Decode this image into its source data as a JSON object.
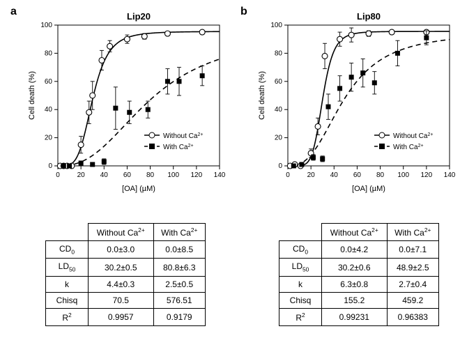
{
  "global": {
    "font_family": "Arial",
    "bg_color": "#ffffff",
    "text_color": "#000000",
    "axis_color": "#000000",
    "series_without": {
      "label": "Without Ca",
      "sup": "2+",
      "marker": "open-circle",
      "line_style": "solid",
      "color": "#000000"
    },
    "series_with": {
      "label": "With Ca",
      "sup": "2+",
      "marker": "filled-square",
      "line_style": "dashed",
      "color": "#000000"
    }
  },
  "panels": {
    "a": {
      "label": "a",
      "chart": {
        "title": "Lip20",
        "title_fontsize": 13,
        "xlabel": "[OA] (µM)",
        "ylabel": "Cell death (%)",
        "label_fontsize": 11,
        "tick_fontsize": 10,
        "xlim": [
          0,
          140
        ],
        "ylim": [
          0,
          100
        ],
        "xticks": [
          0,
          20,
          40,
          60,
          80,
          100,
          120,
          140
        ],
        "yticks": [
          0,
          20,
          40,
          60,
          80,
          100
        ],
        "legend_position": "lower-right",
        "marker_size": 5,
        "line_width": 1.6,
        "errorbar_width": 0.9,
        "without_curve": {
          "CD0": 0,
          "LD50": 30.2,
          "k": 4.4,
          "max": 95.5
        },
        "with_curve": {
          "CD0": 0,
          "LD50": 80.8,
          "k": 2.5,
          "max": 95
        },
        "without_points": [
          {
            "x": 2,
            "y": 0,
            "e": 0
          },
          {
            "x": 5,
            "y": 0,
            "e": 0
          },
          {
            "x": 8,
            "y": 0,
            "e": 0
          },
          {
            "x": 12,
            "y": 0,
            "e": 0
          },
          {
            "x": 20,
            "y": 15,
            "e": 6
          },
          {
            "x": 27,
            "y": 38,
            "e": 8
          },
          {
            "x": 30,
            "y": 50,
            "e": 10
          },
          {
            "x": 38,
            "y": 75,
            "e": 7
          },
          {
            "x": 45,
            "y": 85,
            "e": 4
          },
          {
            "x": 60,
            "y": 90,
            "e": 3
          },
          {
            "x": 75,
            "y": 92,
            "e": 2
          },
          {
            "x": 95,
            "y": 94,
            "e": 1
          },
          {
            "x": 125,
            "y": 95,
            "e": 1
          }
        ],
        "with_points": [
          {
            "x": 5,
            "y": 0,
            "e": 0
          },
          {
            "x": 10,
            "y": 0,
            "e": 0
          },
          {
            "x": 20,
            "y": 2,
            "e": 1
          },
          {
            "x": 30,
            "y": 1,
            "e": 1
          },
          {
            "x": 40,
            "y": 3,
            "e": 2
          },
          {
            "x": 50,
            "y": 41,
            "e": 15
          },
          {
            "x": 62,
            "y": 38,
            "e": 8
          },
          {
            "x": 78,
            "y": 40,
            "e": 6
          },
          {
            "x": 95,
            "y": 60,
            "e": 9
          },
          {
            "x": 105,
            "y": 60,
            "e": 10
          },
          {
            "x": 125,
            "y": 64,
            "e": 7
          }
        ]
      },
      "table": {
        "col1": "Without Ca",
        "col1_sup": "2+",
        "col2": "With Ca",
        "col2_sup": "2+",
        "rows": [
          {
            "h": "CD",
            "sub": "0",
            "v1": "0.0±3.0",
            "v2": "0.0±8.5"
          },
          {
            "h": "LD",
            "sub": "50",
            "v1": "30.2±0.5",
            "v2": "80.8±6.3"
          },
          {
            "h": "k",
            "sub": "",
            "v1": "4.4±0.3",
            "v2": "2.5±0.5"
          },
          {
            "h": "Chisq",
            "sub": "",
            "v1": "70.5",
            "v2": "576.51"
          },
          {
            "h": "R",
            "sup": "2",
            "v1": "0.9957",
            "v2": "0.9179"
          }
        ]
      }
    },
    "b": {
      "label": "b",
      "chart": {
        "title": "Lip80",
        "title_fontsize": 13,
        "xlabel": "[OA] (µM)",
        "ylabel": "Cell death (%)",
        "label_fontsize": 11,
        "tick_fontsize": 10,
        "xlim": [
          0,
          140
        ],
        "ylim": [
          0,
          100
        ],
        "xticks": [
          0,
          20,
          40,
          60,
          80,
          100,
          120,
          140
        ],
        "yticks": [
          0,
          20,
          40,
          60,
          80,
          100
        ],
        "legend_position": "lower-right",
        "marker_size": 5,
        "line_width": 1.6,
        "errorbar_width": 0.9,
        "without_curve": {
          "CD0": 0,
          "LD50": 30.2,
          "k": 6.3,
          "max": 95.5
        },
        "with_curve": {
          "CD0": 0,
          "LD50": 48.9,
          "k": 2.7,
          "max": 95
        },
        "without_points": [
          {
            "x": 2,
            "y": 0,
            "e": 0
          },
          {
            "x": 6,
            "y": 1,
            "e": 0
          },
          {
            "x": 11,
            "y": 0,
            "e": 0
          },
          {
            "x": 20,
            "y": 9,
            "e": 3
          },
          {
            "x": 26,
            "y": 28,
            "e": 6
          },
          {
            "x": 32,
            "y": 78,
            "e": 9
          },
          {
            "x": 45,
            "y": 90,
            "e": 5
          },
          {
            "x": 55,
            "y": 93,
            "e": 5
          },
          {
            "x": 70,
            "y": 94,
            "e": 2
          },
          {
            "x": 90,
            "y": 95,
            "e": 1
          },
          {
            "x": 120,
            "y": 95,
            "e": 1
          }
        ],
        "with_points": [
          {
            "x": 5,
            "y": 0,
            "e": 0
          },
          {
            "x": 12,
            "y": 1,
            "e": 0
          },
          {
            "x": 22,
            "y": 6,
            "e": 2
          },
          {
            "x": 30,
            "y": 5,
            "e": 2
          },
          {
            "x": 35,
            "y": 42,
            "e": 9
          },
          {
            "x": 45,
            "y": 55,
            "e": 9
          },
          {
            "x": 55,
            "y": 63,
            "e": 10
          },
          {
            "x": 65,
            "y": 66,
            "e": 10
          },
          {
            "x": 75,
            "y": 59,
            "e": 8
          },
          {
            "x": 95,
            "y": 80,
            "e": 9
          },
          {
            "x": 120,
            "y": 91,
            "e": 5
          }
        ]
      },
      "table": {
        "col1": "Without Ca",
        "col1_sup": "2+",
        "col2": "With Ca",
        "col2_sup": "2+",
        "rows": [
          {
            "h": "CD",
            "sub": "0",
            "v1": "0.0±4.2",
            "v2": "0.0±7.1"
          },
          {
            "h": "LD",
            "sub": "50",
            "v1": "30.2±0.6",
            "v2": "48.9±2.5"
          },
          {
            "h": "k",
            "sub": "",
            "v1": "6.3±0.8",
            "v2": "2.7±0.4"
          },
          {
            "h": "Chisq",
            "sub": "",
            "v1": "155.2",
            "v2": "459.2"
          },
          {
            "h": "R",
            "sup": "2",
            "v1": "0.99231",
            "v2": "0.96383"
          }
        ]
      }
    }
  }
}
